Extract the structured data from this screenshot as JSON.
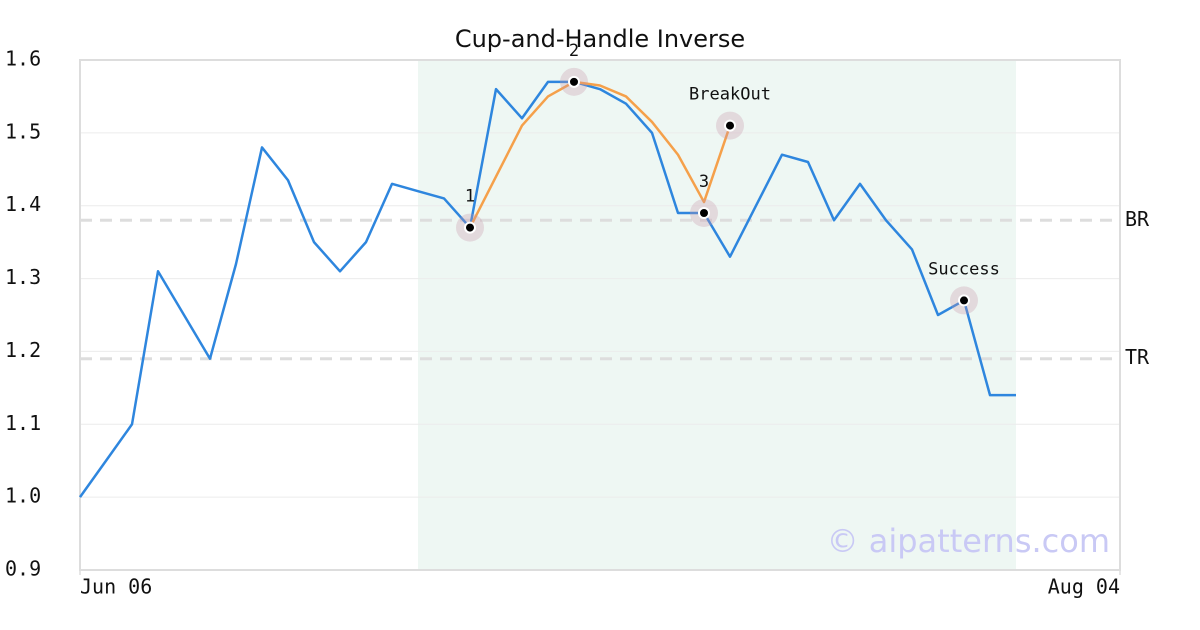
{
  "chart_data": {
    "type": "line",
    "title": "Cup-and-Handle Inverse",
    "x": [
      0,
      1,
      2,
      3,
      4,
      5,
      6,
      7,
      8,
      9,
      10,
      11,
      12,
      13,
      14,
      15,
      16,
      17,
      18,
      19,
      20,
      21,
      22,
      23,
      24,
      25,
      26,
      27,
      28,
      29,
      30,
      31,
      32,
      33,
      34,
      35,
      36
    ],
    "xlim": [
      0,
      40
    ],
    "xticks": [
      {
        "value": 0,
        "label": "Jun 06"
      },
      {
        "value": 40,
        "label": "Aug 04"
      }
    ],
    "ylim": [
      0.9,
      1.6
    ],
    "yticks": [
      0.9,
      {
        "value": 1,
        "label": "1.0"
      },
      1.1,
      1.2,
      1.3,
      1.4,
      1.5,
      1.6
    ],
    "grid": true,
    "series": [
      {
        "color": "#2e86de",
        "values": [
          1.0,
          1.05,
          1.1,
          1.31,
          1.25,
          1.19,
          1.32,
          1.48,
          1.435,
          1.35,
          1.31,
          1.35,
          1.43,
          1.42,
          1.41,
          1.37,
          1.56,
          1.52,
          1.57,
          1.57,
          1.56,
          1.54,
          1.5,
          1.39,
          1.39,
          1.33,
          1.4,
          1.47,
          1.46,
          1.38,
          1.43,
          1.38,
          1.34,
          1.25,
          1.27,
          1.14,
          1.14
        ]
      },
      {
        "color": "#f5a04a",
        "values": [
          null,
          null,
          null,
          null,
          null,
          null,
          null,
          null,
          null,
          null,
          null,
          null,
          null,
          null,
          null,
          1.37,
          1.44,
          1.51,
          1.55,
          1.57,
          1.565,
          1.55,
          1.515,
          1.47,
          1.405,
          1.51,
          null,
          null,
          null,
          null,
          null,
          null,
          null,
          null,
          null,
          null,
          null
        ]
      }
    ],
    "shaded_range": [
      13,
      36
    ],
    "levels": [
      {
        "label": "BR",
        "value": 1.38
      },
      {
        "label": "TR",
        "value": 1.19
      }
    ],
    "points": [
      {
        "label": "1",
        "x": 15,
        "y": 1.37
      },
      {
        "label": "2",
        "x": 19,
        "y": 1.57
      },
      {
        "label": "3",
        "x": 24,
        "y": 1.39
      },
      {
        "label": "BreakOut",
        "x": 25,
        "y": 1.51
      },
      {
        "label": "Success",
        "x": 34,
        "y": 1.27
      }
    ],
    "watermark": "© aipatterns.com"
  }
}
